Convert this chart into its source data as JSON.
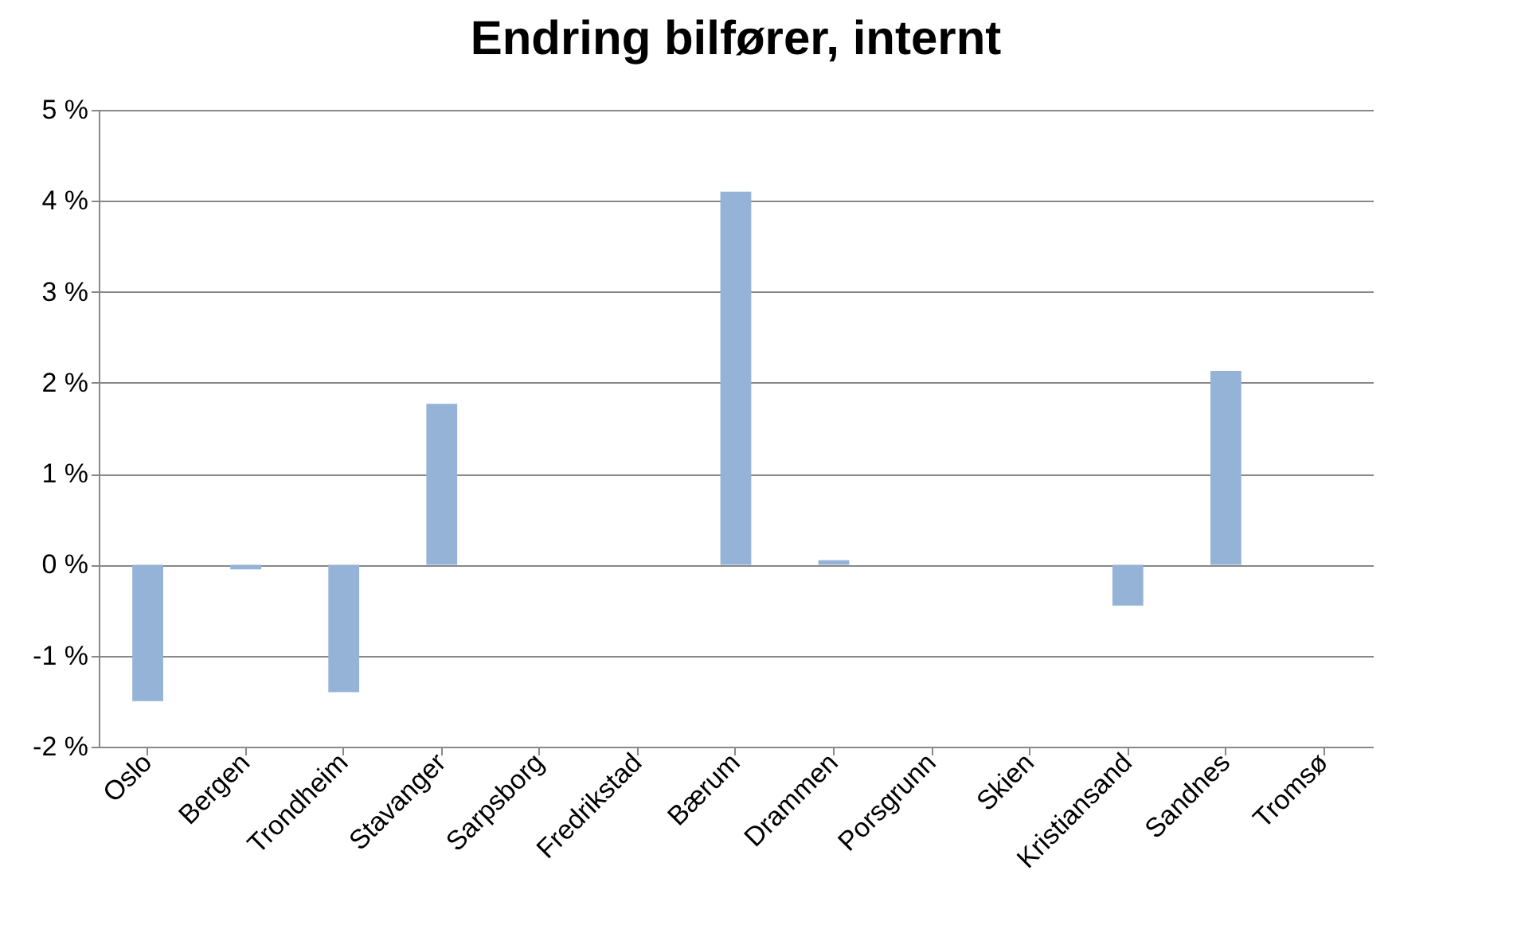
{
  "chart_data": {
    "type": "bar",
    "title": "Endring bilfører, internt",
    "categories": [
      "Oslo",
      "Bergen",
      "Trondheim",
      "Stavanger",
      "Sarpsborg",
      "Fredrikstad",
      "Bærum",
      "Drammen",
      "Porsgrunn",
      "Skien",
      "Kristiansand",
      "Sandnes",
      "Tromsø"
    ],
    "values": [
      -1.5,
      -0.05,
      -1.4,
      1.77,
      0,
      0,
      4.1,
      0.05,
      0,
      0,
      -0.45,
      2.13,
      0
    ],
    "color": "#95b3d7",
    "ylim": [
      -2,
      5
    ],
    "yticks": [
      {
        "value": -2,
        "label": "-2 %"
      },
      {
        "value": -1,
        "label": "-1 %"
      },
      {
        "value": 0,
        "label": "0 %"
      },
      {
        "value": 1,
        "label": "1 %"
      },
      {
        "value": 2,
        "label": "2 %"
      },
      {
        "value": 3,
        "label": "3 %"
      },
      {
        "value": 4,
        "label": "4 %"
      },
      {
        "value": 5,
        "label": "5 %"
      }
    ],
    "grid": "y"
  }
}
